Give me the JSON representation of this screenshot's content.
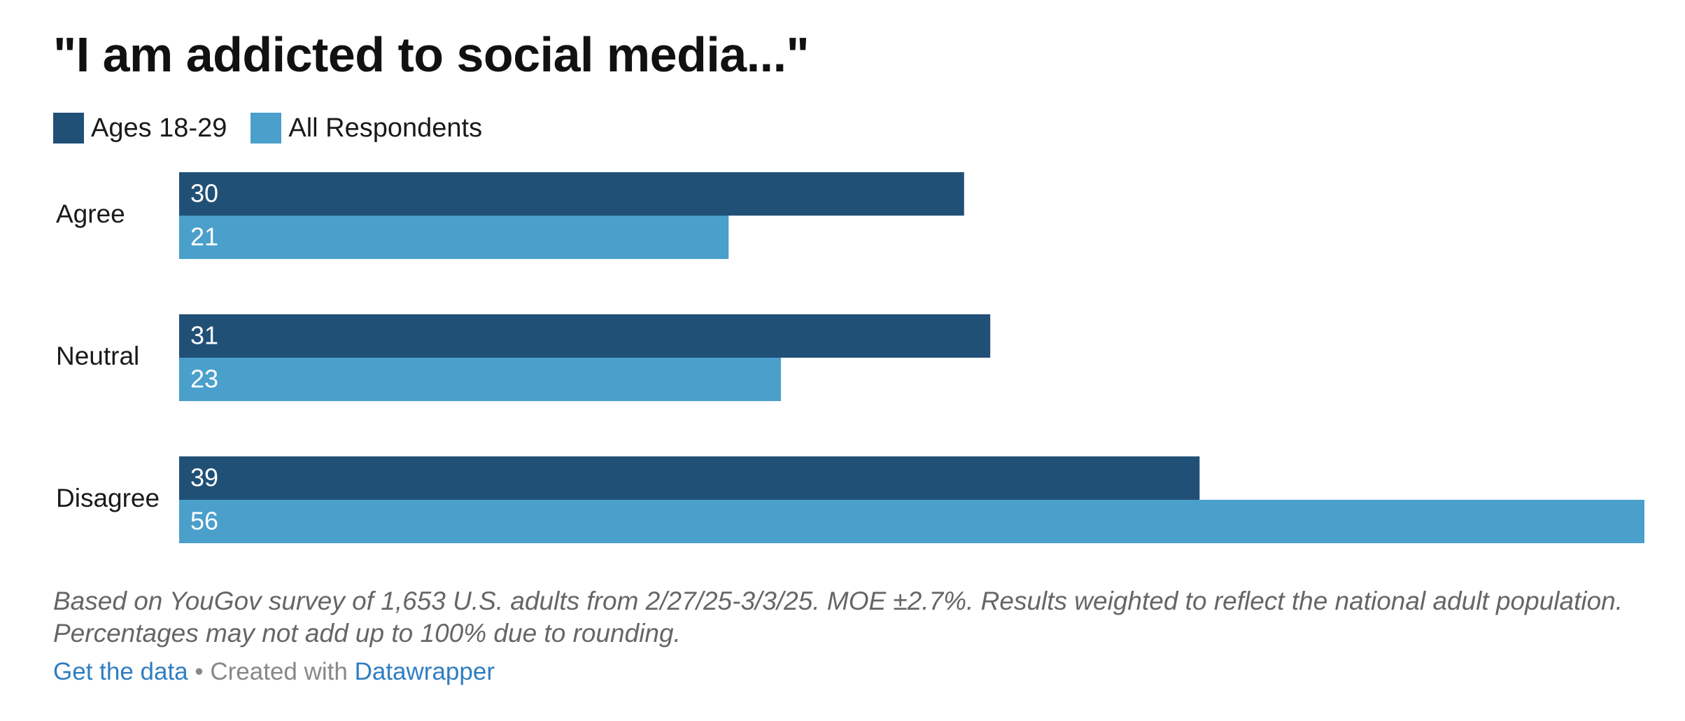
{
  "chart_data": {
    "type": "bar",
    "orientation": "horizontal",
    "title": "\"I am addicted to social media...\"",
    "categories": [
      "Agree",
      "Neutral",
      "Disagree"
    ],
    "series": [
      {
        "name": "Ages 18-29",
        "values": [
          30,
          31,
          39
        ],
        "color": "#215077"
      },
      {
        "name": "All Respondents",
        "values": [
          21,
          23,
          56
        ],
        "color": "#4a9fcb"
      }
    ],
    "xlim": [
      0,
      56
    ],
    "grid": false,
    "legend_position": "top-left"
  },
  "notes": "Based on YouGov survey of 1,653 U.S. adults from 2/27/25-3/3/25. MOE ±2.7%. Results weighted to reflect the national adult population. Percentages may not add up to 100% due to rounding.",
  "footer": {
    "get_data": "Get the data",
    "separator": "•",
    "created_with": "Created with",
    "tool": "Datawrapper"
  }
}
